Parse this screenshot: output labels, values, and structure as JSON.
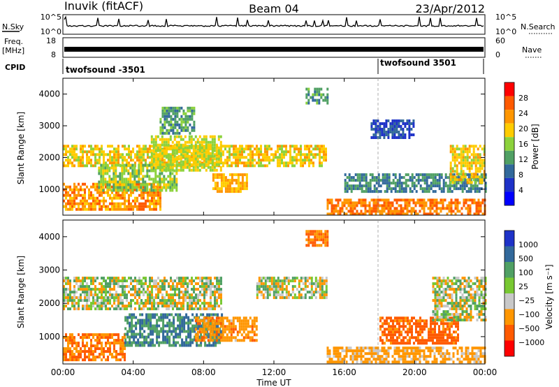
{
  "header": {
    "station": "Inuvik (fitACF)",
    "beam": "Beam 04",
    "date": "23/Apr/2012"
  },
  "top_panels": {
    "nsky_label": "N.Sky",
    "nsky_ticks": [
      "10^5",
      "10^0"
    ],
    "nsearch_label": "N.Search",
    "nsearch_ticks": [
      "10^5",
      "10^0"
    ],
    "freq_label": "Freq.",
    "freq_unit": "[MHz]",
    "freq_ticks": [
      "18",
      "8"
    ],
    "nave_label": "Nave",
    "nave_ticks": [
      "60",
      "0"
    ],
    "cpid_label": "CPID",
    "cpid_segments": [
      {
        "label": "twofsound -3501",
        "start_hour": 0
      },
      {
        "label": "twofsound 3501",
        "start_hour": 18
      }
    ]
  },
  "chart_data": [
    {
      "type": "heatmap",
      "panel": "power",
      "ylabel": "Slant Range [km]",
      "ylim": [
        180,
        4500
      ],
      "y_ticks": [
        1000,
        2000,
        3000,
        4000
      ],
      "xlim_hours": [
        0,
        24
      ],
      "colorbar": {
        "label": "Power [dB]",
        "ticks": [
          "28",
          "24",
          "20",
          "16",
          "12",
          "8",
          "4"
        ],
        "colors": [
          "#ff0000",
          "#ff5a00",
          "#ff9600",
          "#ffcc00",
          "#8cd23c",
          "#50a064",
          "#32699b",
          "#1e32c8",
          "#0000ff"
        ]
      },
      "regions": [
        {
          "t": [
            0.0,
            15.0
          ],
          "r": [
            1700,
            2400
          ],
          "level": 22
        },
        {
          "t": [
            0.0,
            5.5
          ],
          "r": [
            400,
            1200
          ],
          "level": 26
        },
        {
          "t": [
            2.0,
            6.5
          ],
          "r": [
            1000,
            1800
          ],
          "level": 18
        },
        {
          "t": [
            5.0,
            9.0
          ],
          "r": [
            1600,
            2700
          ],
          "level": 20
        },
        {
          "t": [
            5.5,
            7.5
          ],
          "r": [
            2800,
            3600
          ],
          "level": 14
        },
        {
          "t": [
            8.5,
            10.5
          ],
          "r": [
            900,
            1500
          ],
          "level": 24
        },
        {
          "t": [
            13.8,
            15.0
          ],
          "r": [
            3700,
            4200
          ],
          "level": 14
        },
        {
          "t": [
            15.0,
            24.0
          ],
          "r": [
            200,
            700
          ],
          "level": 28
        },
        {
          "t": [
            16.0,
            24.0
          ],
          "r": [
            900,
            1500
          ],
          "level": 12
        },
        {
          "t": [
            22.0,
            24.0
          ],
          "r": [
            1200,
            2400
          ],
          "level": 22
        },
        {
          "t": [
            17.5,
            20.0
          ],
          "r": [
            2600,
            3200
          ],
          "level": 8
        }
      ]
    },
    {
      "type": "heatmap",
      "panel": "velocity",
      "ylabel": "Slant Range [km]",
      "ylim": [
        180,
        4500
      ],
      "y_ticks": [
        1000,
        2000,
        3000,
        4000
      ],
      "xlim_hours": [
        0,
        24
      ],
      "x_ticks": [
        "00:00",
        "04:00",
        "08:00",
        "12:00",
        "16:00",
        "20:00",
        "00:00"
      ],
      "xlabel": "Time UT",
      "colorbar": {
        "label": "Velocity [m s⁻¹]",
        "ticks": [
          "1000",
          "500",
          "100",
          "25",
          "−25",
          "−100",
          "−500",
          "−1000"
        ],
        "colors": [
          "#1e32c8",
          "#32699b",
          "#50a064",
          "#78c832",
          "#c8c8c8",
          "#ff9600",
          "#ff5a00",
          "#ff0000"
        ]
      },
      "regions": [
        {
          "t": [
            0.0,
            9.0
          ],
          "r": [
            1800,
            2800
          ],
          "value": 0
        },
        {
          "t": [
            0.0,
            3.5
          ],
          "r": [
            300,
            1100
          ],
          "value": -300
        },
        {
          "t": [
            3.5,
            9.0
          ],
          "r": [
            700,
            1700
          ],
          "value": 300
        },
        {
          "t": [
            7.5,
            11.0
          ],
          "r": [
            900,
            1600
          ],
          "value": -200
        },
        {
          "t": [
            11.0,
            15.0
          ],
          "r": [
            2200,
            2800
          ],
          "value": 0
        },
        {
          "t": [
            13.8,
            15.0
          ],
          "r": [
            3700,
            4200
          ],
          "value": -300
        },
        {
          "t": [
            15.0,
            24.0
          ],
          "r": [
            200,
            700
          ],
          "value": -150
        },
        {
          "t": [
            18.0,
            22.5
          ],
          "r": [
            800,
            1600
          ],
          "value": -400
        },
        {
          "t": [
            21.0,
            24.0
          ],
          "r": [
            1500,
            2800
          ],
          "value": 0
        }
      ]
    }
  ]
}
